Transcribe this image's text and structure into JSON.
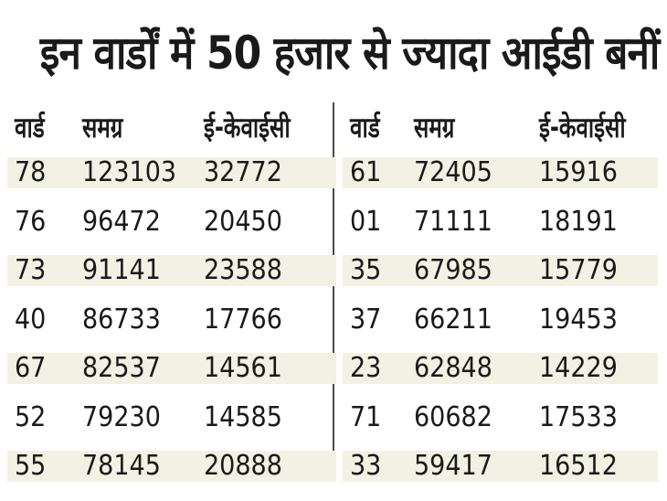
{
  "title": "इन वार्डों में 50 हजार से ज्यादा आईडी बनीं",
  "colors": {
    "band": "#f3f1e3",
    "text": "#1a1a1a",
    "divider": "#4a4a4a"
  },
  "headers": {
    "ward": "वार्ड",
    "samagra": "समग्र",
    "ekyc": "ई-केवाईसी"
  },
  "left_rows": [
    {
      "ward": "78",
      "samagra": "123103",
      "ekyc": "32772"
    },
    {
      "ward": "76",
      "samagra": "96472",
      "ekyc": "20450"
    },
    {
      "ward": "73",
      "samagra": "91141",
      "ekyc": "23588"
    },
    {
      "ward": "40",
      "samagra": "86733",
      "ekyc": "17766"
    },
    {
      "ward": "67",
      "samagra": "82537",
      "ekyc": "14561"
    },
    {
      "ward": "52",
      "samagra": "79230",
      "ekyc": "14585"
    },
    {
      "ward": "55",
      "samagra": "78145",
      "ekyc": "20888"
    }
  ],
  "right_rows": [
    {
      "ward": "61",
      "samagra": "72405",
      "ekyc": "15916"
    },
    {
      "ward": "01",
      "samagra": "71111",
      "ekyc": "18191"
    },
    {
      "ward": "35",
      "samagra": "67985",
      "ekyc": "15779"
    },
    {
      "ward": "37",
      "samagra": "66211",
      "ekyc": "19453"
    },
    {
      "ward": "23",
      "samagra": "62848",
      "ekyc": "14229"
    },
    {
      "ward": "71",
      "samagra": "60682",
      "ekyc": "17533"
    },
    {
      "ward": "33",
      "samagra": "59417",
      "ekyc": "16512"
    }
  ]
}
